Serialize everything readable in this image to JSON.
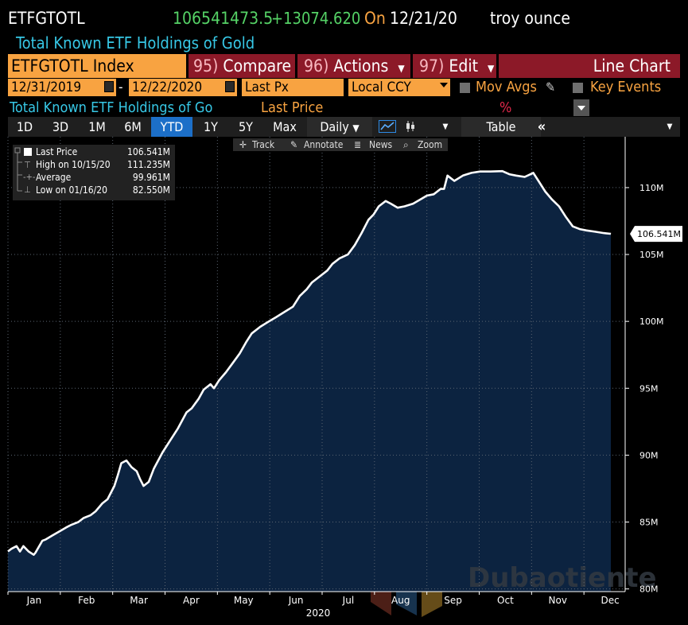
{
  "header": {
    "ticker": "ETFGTOTL",
    "last_value": "106541473.5",
    "change": "+13074.620",
    "on_label": "On",
    "date": "12/21/20",
    "unit": "troy ounce",
    "description": "Total Known ETF Holdings of Gold"
  },
  "toolbar": {
    "security": "ETFGTOTL Index",
    "compare_num": "95)",
    "compare": "Compare",
    "actions_num": "96)",
    "actions": "Actions",
    "edit_num": "97)",
    "edit": "Edit",
    "chart_type": "Line Chart"
  },
  "controls": {
    "start_date": "12/31/2019",
    "separator": "-",
    "end_date": "12/22/2020",
    "field": "Last Px",
    "currency": "Local CCY",
    "mov_avgs": "Mov Avgs",
    "key_events": "Key Events"
  },
  "series_row": {
    "name": "Total Known ETF Holdings of Go",
    "field": "Last Price",
    "pct": "%"
  },
  "tabs": [
    "1D",
    "3D",
    "1M",
    "6M",
    "YTD",
    "1Y",
    "5Y",
    "Max"
  ],
  "active_tab": "YTD",
  "periodicity": "Daily",
  "table_label": "Table",
  "tools": {
    "track": "Track",
    "annotate": "Annotate",
    "news": "News",
    "zoom": "Zoom"
  },
  "legend": [
    {
      "label": "Last Price",
      "value": "106.541M"
    },
    {
      "label": "High on 10/15/20",
      "value": "111.235M"
    },
    {
      "label": "Average",
      "value": "99.961M"
    },
    {
      "label": "Low on 01/16/20",
      "value": "82.550M"
    }
  ],
  "watermark": "Dubaotiente",
  "colors": {
    "background": "#000000",
    "area_fill": "#0c2340",
    "line": "#ffffff",
    "amber": "#f8a341",
    "red": "#8c1928",
    "green": "#55d266",
    "cyan": "#37c8e6",
    "active_tab": "#1c6fc8"
  },
  "chart_data": {
    "type": "area",
    "title": "",
    "xlabel": "2020",
    "ylabel": "",
    "x_ticks": [
      "Jan",
      "Feb",
      "Mar",
      "Apr",
      "May",
      "Jun",
      "Jul",
      "Aug",
      "Sep",
      "Oct",
      "Nov",
      "Dec"
    ],
    "y_ticks": [
      "80M",
      "85M",
      "90M",
      "95M",
      "100M",
      "105M",
      "110M"
    ],
    "ylim": [
      79.8,
      113.8
    ],
    "last_label": "106.541M",
    "series": [
      {
        "values": [
          [
            "2019-12-31",
            82.8
          ],
          [
            "2020-01-03",
            83.0
          ],
          [
            "2020-01-06",
            83.2
          ],
          [
            "2020-01-08",
            82.8
          ],
          [
            "2020-01-10",
            83.2
          ],
          [
            "2020-01-13",
            82.8
          ],
          [
            "2020-01-16",
            82.55
          ],
          [
            "2020-01-17",
            82.7
          ],
          [
            "2020-01-21",
            83.6
          ],
          [
            "2020-01-23",
            83.7
          ],
          [
            "2020-01-27",
            84.0
          ],
          [
            "2020-01-31",
            84.3
          ],
          [
            "2020-02-04",
            84.6
          ],
          [
            "2020-02-07",
            84.8
          ],
          [
            "2020-02-11",
            85.0
          ],
          [
            "2020-02-14",
            85.3
          ],
          [
            "2020-02-18",
            85.5
          ],
          [
            "2020-02-21",
            85.8
          ],
          [
            "2020-02-25",
            86.4
          ],
          [
            "2020-02-28",
            86.7
          ],
          [
            "2020-03-03",
            87.7
          ],
          [
            "2020-03-05",
            88.5
          ],
          [
            "2020-03-07",
            89.4
          ],
          [
            "2020-03-10",
            89.6
          ],
          [
            "2020-03-13",
            89.1
          ],
          [
            "2020-03-16",
            88.8
          ],
          [
            "2020-03-18",
            88.2
          ],
          [
            "2020-03-20",
            87.7
          ],
          [
            "2020-03-23",
            88.0
          ],
          [
            "2020-03-26",
            89.0
          ],
          [
            "2020-03-31",
            90.2
          ],
          [
            "2020-04-04",
            91.0
          ],
          [
            "2020-04-09",
            92.0
          ],
          [
            "2020-04-14",
            93.2
          ],
          [
            "2020-04-17",
            93.5
          ],
          [
            "2020-04-21",
            94.2
          ],
          [
            "2020-04-24",
            94.9
          ],
          [
            "2020-04-28",
            95.3
          ],
          [
            "2020-04-30",
            95.0
          ],
          [
            "2020-05-03",
            95.6
          ],
          [
            "2020-05-07",
            96.2
          ],
          [
            "2020-05-11",
            96.9
          ],
          [
            "2020-05-15",
            97.6
          ],
          [
            "2020-05-19",
            98.5
          ],
          [
            "2020-05-22",
            99.1
          ],
          [
            "2020-05-27",
            99.6
          ],
          [
            "2020-06-01",
            100.0
          ],
          [
            "2020-06-05",
            100.3
          ],
          [
            "2020-06-10",
            100.7
          ],
          [
            "2020-06-15",
            101.1
          ],
          [
            "2020-06-19",
            101.9
          ],
          [
            "2020-06-23",
            102.4
          ],
          [
            "2020-06-26",
            102.9
          ],
          [
            "2020-06-30",
            103.3
          ],
          [
            "2020-07-05",
            103.8
          ],
          [
            "2020-07-08",
            104.3
          ],
          [
            "2020-07-12",
            104.7
          ],
          [
            "2020-07-17",
            105.0
          ],
          [
            "2020-07-21",
            105.7
          ],
          [
            "2020-07-25",
            106.6
          ],
          [
            "2020-07-29",
            107.6
          ],
          [
            "2020-08-01",
            108.0
          ],
          [
            "2020-08-04",
            108.6
          ],
          [
            "2020-08-08",
            109.0
          ],
          [
            "2020-08-11",
            108.8
          ],
          [
            "2020-08-15",
            108.5
          ],
          [
            "2020-08-19",
            108.6
          ],
          [
            "2020-08-24",
            108.8
          ],
          [
            "2020-08-28",
            109.1
          ],
          [
            "2020-09-01",
            109.4
          ],
          [
            "2020-09-05",
            109.5
          ],
          [
            "2020-09-09",
            109.9
          ],
          [
            "2020-09-11",
            109.9
          ],
          [
            "2020-09-13",
            110.9
          ],
          [
            "2020-09-17",
            110.5
          ],
          [
            "2020-09-22",
            110.9
          ],
          [
            "2020-09-27",
            111.1
          ],
          [
            "2020-10-02",
            111.2
          ],
          [
            "2020-10-08",
            111.2
          ],
          [
            "2020-10-15",
            111.235
          ],
          [
            "2020-10-19",
            111.0
          ],
          [
            "2020-10-23",
            110.9
          ],
          [
            "2020-10-28",
            110.8
          ],
          [
            "2020-11-02",
            111.1
          ],
          [
            "2020-11-05",
            110.5
          ],
          [
            "2020-11-09",
            109.7
          ],
          [
            "2020-11-13",
            109.1
          ],
          [
            "2020-11-17",
            108.6
          ],
          [
            "2020-11-21",
            107.8
          ],
          [
            "2020-11-25",
            107.1
          ],
          [
            "2020-11-29",
            106.9
          ],
          [
            "2020-12-03",
            106.8
          ],
          [
            "2020-12-08",
            106.7
          ],
          [
            "2020-12-13",
            106.6
          ],
          [
            "2020-12-17",
            106.55
          ],
          [
            "2020-12-21",
            106.541
          ]
        ]
      }
    ]
  }
}
